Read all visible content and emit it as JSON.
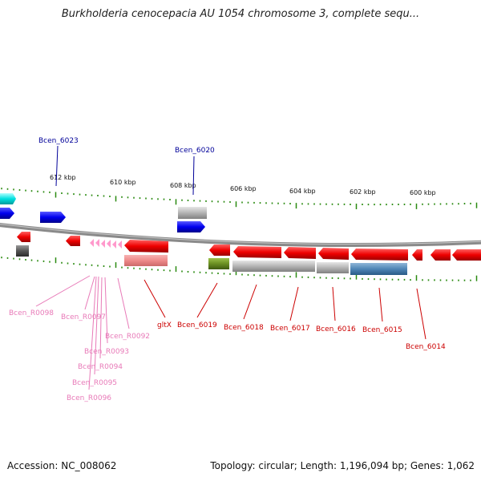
{
  "title": "Burkholderia cenocepacia AU 1054 chromosome 3, complete sequ...",
  "footer": {
    "accession": "Accession: NC_008062",
    "topology": "Topology: circular; Length: 1,196,094 bp; Genes: 1,062"
  },
  "colors": {
    "backbone": "#808080",
    "tick": "#2a8a10",
    "forward_gene": "#0000ff",
    "reverse_gene": "#ff0000",
    "rna_gene": "#ff99cc",
    "pseudo_gene": "#aaaaaa",
    "label_blue": "#000099",
    "label_red": "#cc0000",
    "label_pink": "#e87ab8"
  },
  "scale_labels": [
    "612 kbp",
    "610 kbp",
    "608 kbp",
    "606 kbp",
    "604 kbp",
    "602 kbp",
    "600 kbp"
  ],
  "gene_labels_top": [
    "Bcen_6023",
    "Bcen_6020"
  ],
  "gene_labels_red": [
    "gltX",
    "Bcen_6019",
    "Bcen_6018",
    "Bcen_6017",
    "Bcen_6016",
    "Bcen_6015",
    "Bcen_6014"
  ],
  "gene_labels_pink": [
    "Bcen_R0098",
    "Bcen_R0097",
    "Bcen_R0092",
    "Bcen_R0093",
    "Bcen_R0094",
    "Bcen_R0095",
    "Bcen_R0096"
  ]
}
